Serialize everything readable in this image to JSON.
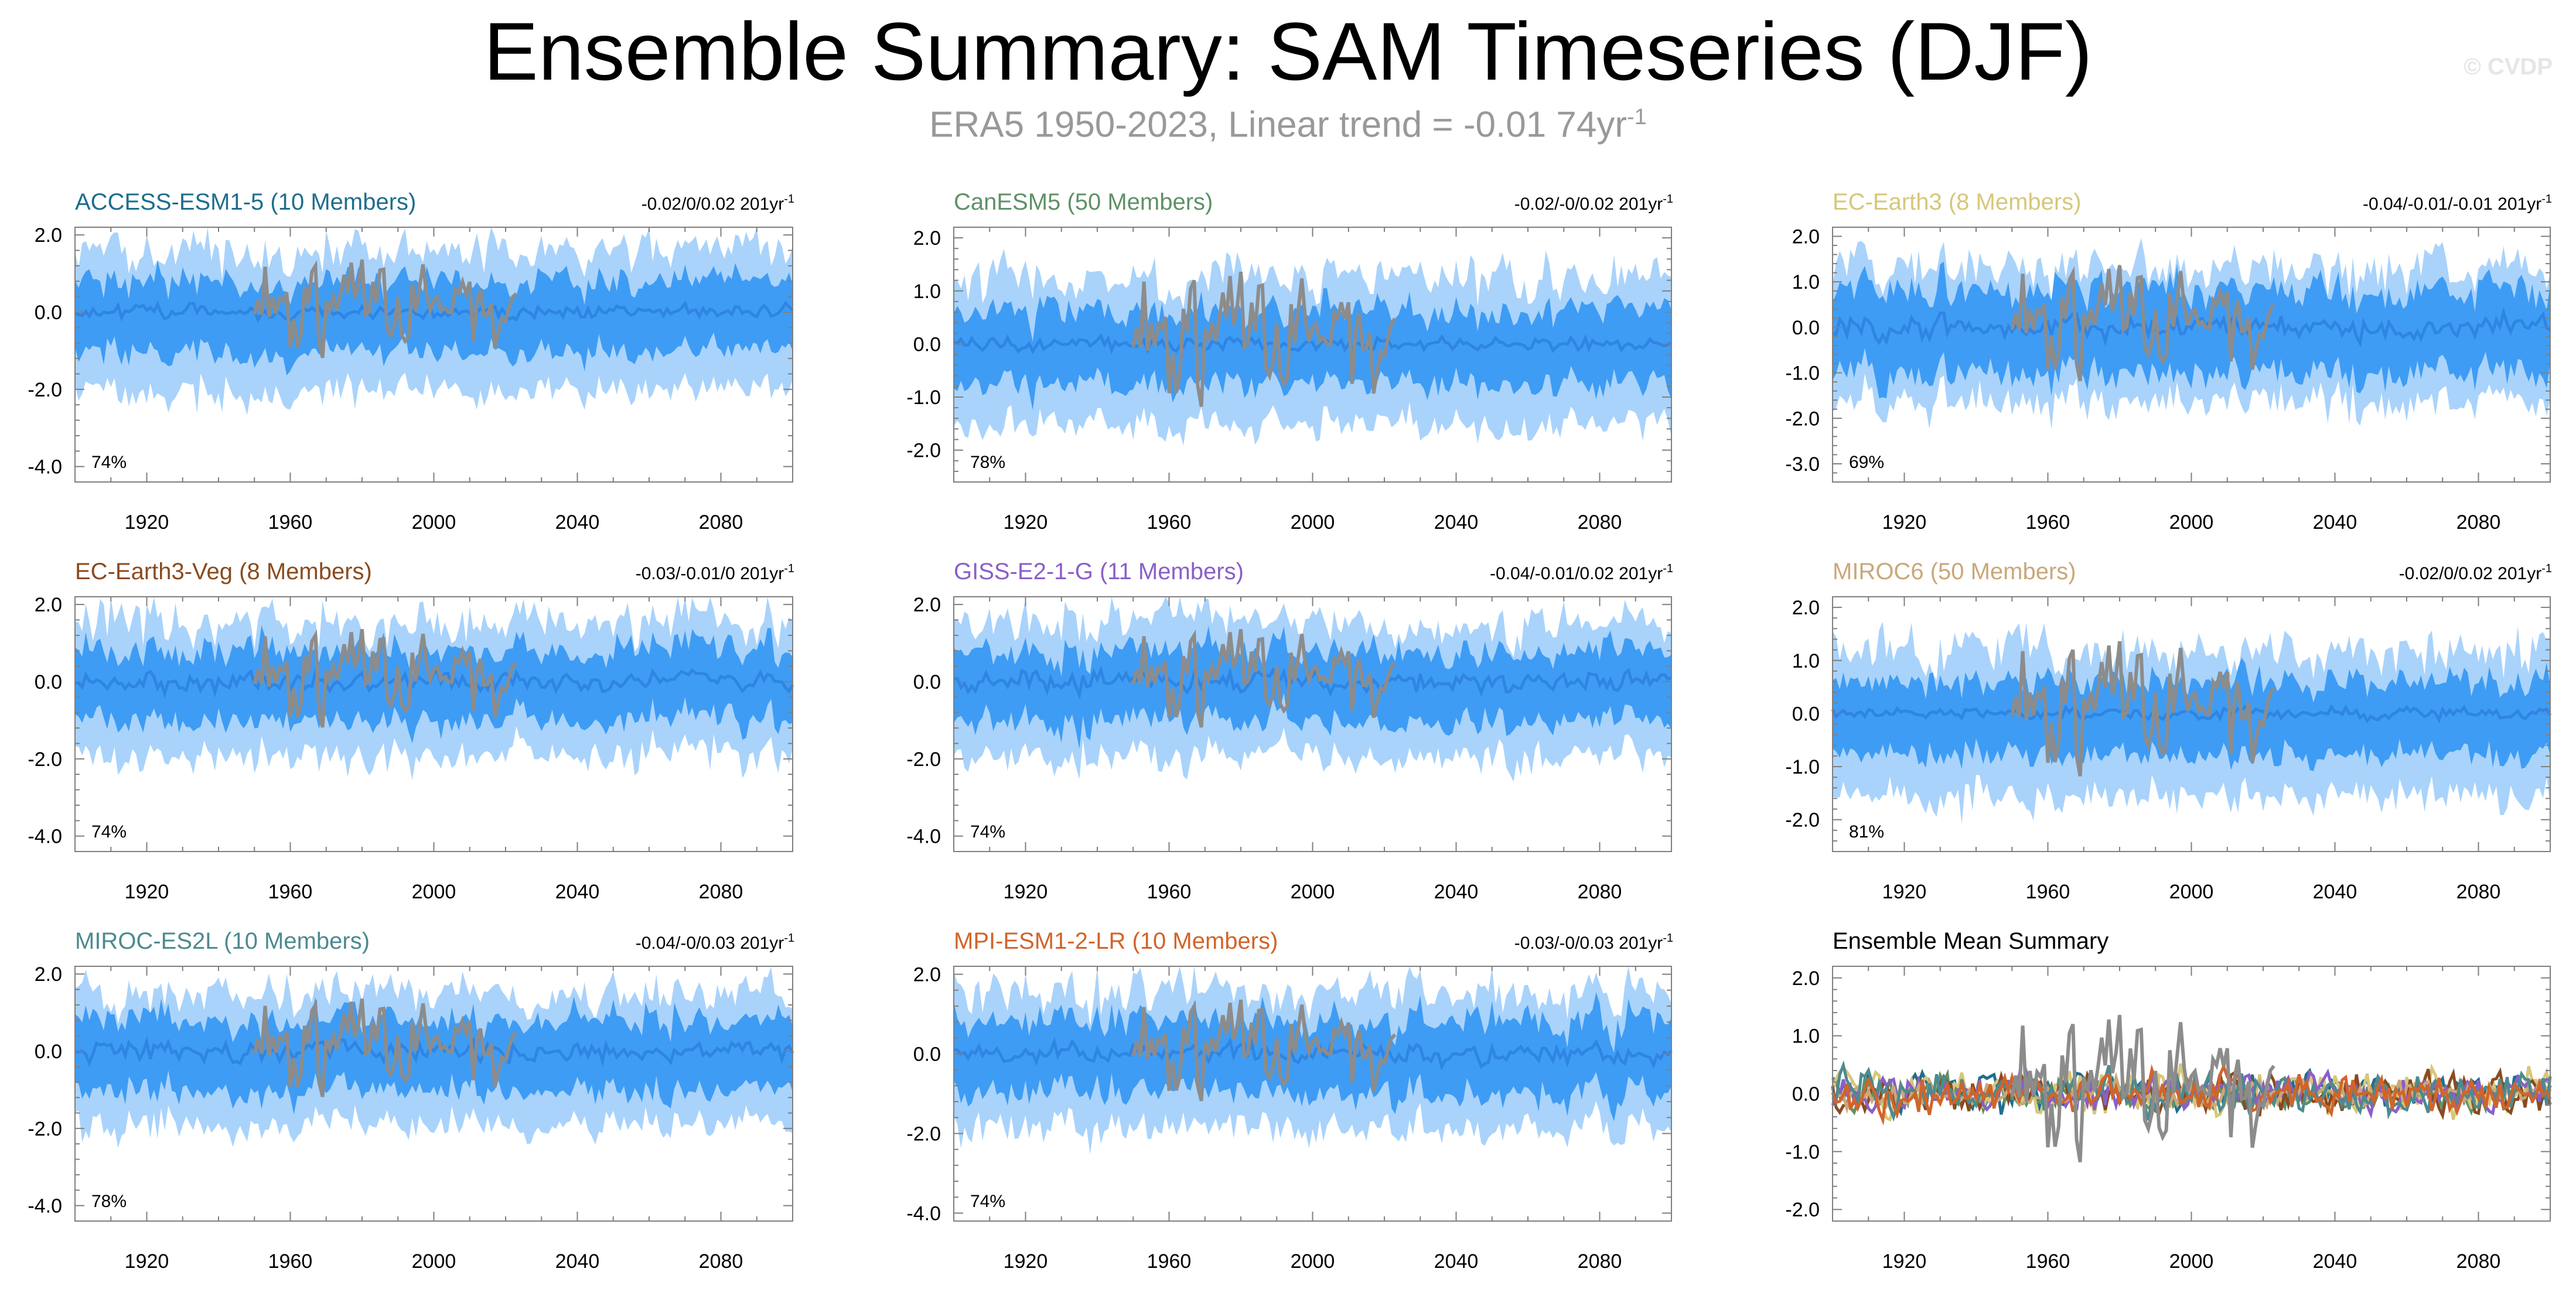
{
  "title": "Ensemble Summary: SAM Timeseries (DJF)",
  "subtitle_main": "ERA5 1950-2023, Linear trend = -0.01 74yr",
  "subtitle_sup": "-1",
  "watermark": "© CVDP",
  "colors": {
    "outer_band": "#a9d3fb",
    "inner_band": "#3e9cf4",
    "ens_mean": "#2f85e3",
    "obs": "#8c8c8c",
    "axis": "#7f7f7f"
  },
  "chart_data": [
    {
      "type": "area",
      "title": "ACCESS-ESM1-5 (10 Members)",
      "title_color": "#1f6e8c",
      "range_label": "-0.02/0/0.02 201yr",
      "range_sup": "-1",
      "percent": "74%",
      "ylim": [
        -4.4,
        2.2
      ],
      "yticks": [
        2.0,
        0.0,
        -2.0,
        -4.0
      ],
      "ytick_labels": [
        "2.0",
        "0.0",
        "-2.0",
        "-4.0"
      ],
      "xlim": [
        1900,
        2100
      ],
      "xticks": [
        1920,
        1960,
        2000,
        2040,
        2080
      ],
      "series": [
        {
          "role": "outer",
          "x_range": [
            1900,
            2100
          ],
          "amplitude": 1.6
        },
        {
          "role": "inner",
          "x_range": [
            1900,
            2100
          ],
          "amplitude": 0.8
        },
        {
          "role": "mean",
          "x_range": [
            1900,
            2100
          ],
          "amplitude": 0.2
        },
        {
          "role": "obs",
          "x_range": [
            1950,
            2023
          ],
          "amplitude": 0.9
        }
      ]
    },
    {
      "type": "area",
      "title": "CanESM5 (50 Members)",
      "title_color": "#5f9167",
      "range_label": "-0.02/-0/0.02 201yr",
      "range_sup": "-1",
      "percent": "78%",
      "ylim": [
        -2.6,
        2.2
      ],
      "yticks": [
        2.0,
        1.0,
        0.0,
        -1.0,
        -2.0
      ],
      "ytick_labels": [
        "2.0",
        "1.0",
        "0.0",
        "-1.0",
        "-2.0"
      ],
      "xlim": [
        1900,
        2100
      ],
      "xticks": [
        1920,
        1960,
        2000,
        2040,
        2080
      ],
      "series": [
        {
          "role": "outer",
          "x_range": [
            1900,
            2100
          ],
          "amplitude": 1.2
        },
        {
          "role": "inner",
          "x_range": [
            1900,
            2100
          ],
          "amplitude": 0.6
        },
        {
          "role": "mean",
          "x_range": [
            1900,
            2100
          ],
          "amplitude": 0.15
        },
        {
          "role": "obs",
          "x_range": [
            1950,
            2023
          ],
          "amplitude": 0.9
        }
      ]
    },
    {
      "type": "area",
      "title": "EC-Earth3 (8 Members)",
      "title_color": "#d6c77a",
      "range_label": "-0.04/-0.01/-0.01 201yr",
      "range_sup": "-1",
      "percent": "69%",
      "ylim": [
        -3.4,
        2.2
      ],
      "yticks": [
        2.0,
        1.0,
        0.0,
        -1.0,
        -2.0,
        -3.0
      ],
      "ytick_labels": [
        "2.0",
        "1.0",
        "0.0",
        "-1.0",
        "-2.0",
        "-3.0"
      ],
      "xlim": [
        1900,
        2100
      ],
      "xticks": [
        1920,
        1960,
        2000,
        2040,
        2080
      ],
      "series": [
        {
          "role": "outer",
          "x_range": [
            1900,
            2100
          ],
          "amplitude": 1.3
        },
        {
          "role": "inner",
          "x_range": [
            1900,
            2100
          ],
          "amplitude": 0.8
        },
        {
          "role": "mean",
          "x_range": [
            1900,
            2100
          ],
          "amplitude": 0.3
        },
        {
          "role": "obs",
          "x_range": [
            1950,
            2023
          ],
          "amplitude": 0.9
        }
      ]
    },
    {
      "type": "area",
      "title": "EC-Earth3-Veg (8 Members)",
      "title_color": "#8a4b1f",
      "range_label": "-0.03/-0.01/0 201yr",
      "range_sup": "-1",
      "percent": "74%",
      "ylim": [
        -4.4,
        2.2
      ],
      "yticks": [
        2.0,
        0.0,
        -2.0,
        -4.0
      ],
      "ytick_labels": [
        "2.0",
        "0.0",
        "-2.0",
        "-4.0"
      ],
      "xlim": [
        1900,
        2100
      ],
      "xticks": [
        1920,
        1960,
        2000,
        2040,
        2080
      ],
      "series": [
        {
          "role": "outer",
          "x_range": [
            1900,
            2100
          ],
          "amplitude": 1.5
        },
        {
          "role": "inner",
          "x_range": [
            1900,
            2100
          ],
          "amplitude": 0.8
        },
        {
          "role": "mean",
          "x_range": [
            1900,
            2100
          ],
          "amplitude": 0.3
        },
        {
          "role": "obs",
          "x_range": [
            1950,
            2023
          ],
          "amplitude": 0.9
        }
      ]
    },
    {
      "type": "area",
      "title": "GISS-E2-1-G (11 Members)",
      "title_color": "#8a5fc8",
      "range_label": "-0.04/-0.01/0.02 201yr",
      "range_sup": "-1",
      "percent": "74%",
      "ylim": [
        -4.4,
        2.2
      ],
      "yticks": [
        2.0,
        0.0,
        -2.0,
        -4.0
      ],
      "ytick_labels": [
        "2.0",
        "0.0",
        "-2.0",
        "-4.0"
      ],
      "xlim": [
        1900,
        2100
      ],
      "xticks": [
        1920,
        1960,
        2000,
        2040,
        2080
      ],
      "series": [
        {
          "role": "outer",
          "x_range": [
            1900,
            2100
          ],
          "amplitude": 1.5
        },
        {
          "role": "inner",
          "x_range": [
            1900,
            2100
          ],
          "amplitude": 0.8
        },
        {
          "role": "mean",
          "x_range": [
            1900,
            2100
          ],
          "amplitude": 0.3
        },
        {
          "role": "obs",
          "x_range": [
            1950,
            2023
          ],
          "amplitude": 0.9
        }
      ]
    },
    {
      "type": "area",
      "title": "MIROC6 (50 Members)",
      "title_color": "#c9a87a",
      "range_label": "-0.02/0/0.02 201yr",
      "range_sup": "-1",
      "percent": "81%",
      "ylim": [
        -2.6,
        2.2
      ],
      "yticks": [
        2.0,
        1.0,
        0.0,
        -1.0,
        -2.0
      ],
      "ytick_labels": [
        "2.0",
        "1.0",
        "0.0",
        "-1.0",
        "-2.0"
      ],
      "xlim": [
        1900,
        2100
      ],
      "xticks": [
        1920,
        1960,
        2000,
        2040,
        2080
      ],
      "series": [
        {
          "role": "outer",
          "x_range": [
            1900,
            2100
          ],
          "amplitude": 1.2
        },
        {
          "role": "inner",
          "x_range": [
            1900,
            2100
          ],
          "amplitude": 0.6
        },
        {
          "role": "mean",
          "x_range": [
            1900,
            2100
          ],
          "amplitude": 0.12
        },
        {
          "role": "obs",
          "x_range": [
            1950,
            2023
          ],
          "amplitude": 0.9
        }
      ]
    },
    {
      "type": "area",
      "title": "MIROC-ES2L (10 Members)",
      "title_color": "#4d8a8f",
      "range_label": "-0.04/-0/0.03 201yr",
      "range_sup": "-1",
      "percent": "78%",
      "ylim": [
        -4.4,
        2.2
      ],
      "yticks": [
        2.0,
        0.0,
        -2.0,
        -4.0
      ],
      "ytick_labels": [
        "2.0",
        "0.0",
        "-2.0",
        "-4.0"
      ],
      "xlim": [
        1900,
        2100
      ],
      "xticks": [
        1920,
        1960,
        2000,
        2040,
        2080
      ],
      "series": [
        {
          "role": "outer",
          "x_range": [
            1900,
            2100
          ],
          "amplitude": 1.5
        },
        {
          "role": "inner",
          "x_range": [
            1900,
            2100
          ],
          "amplitude": 0.8
        },
        {
          "role": "mean",
          "x_range": [
            1900,
            2100
          ],
          "amplitude": 0.3
        },
        {
          "role": "obs",
          "x_range": [
            1950,
            2023
          ],
          "amplitude": 0.9
        }
      ]
    },
    {
      "type": "area",
      "title": "MPI-ESM1-2-LR (10 Members)",
      "title_color": "#d2642a",
      "range_label": "-0.03/-0/0.03 201yr",
      "range_sup": "-1",
      "percent": "74%",
      "ylim": [
        -4.2,
        2.2
      ],
      "yticks": [
        2.0,
        0.0,
        -2.0,
        -4.0
      ],
      "ytick_labels": [
        "2.0",
        "0.0",
        "-2.0",
        "-4.0"
      ],
      "xlim": [
        1900,
        2100
      ],
      "xticks": [
        1920,
        1960,
        2000,
        2040,
        2080
      ],
      "series": [
        {
          "role": "outer",
          "x_range": [
            1900,
            2100
          ],
          "amplitude": 1.5
        },
        {
          "role": "inner",
          "x_range": [
            1900,
            2100
          ],
          "amplitude": 0.8
        },
        {
          "role": "mean",
          "x_range": [
            1900,
            2100
          ],
          "amplitude": 0.3
        },
        {
          "role": "obs",
          "x_range": [
            1950,
            2023
          ],
          "amplitude": 0.9
        }
      ]
    },
    {
      "type": "line",
      "title": "Ensemble Mean Summary",
      "title_color": "#000000",
      "range_label": "",
      "range_sup": "",
      "percent": "",
      "ylim": [
        -2.2,
        2.2
      ],
      "yticks": [
        2.0,
        1.0,
        0.0,
        -1.0,
        -2.0
      ],
      "ytick_labels": [
        "2.0",
        "1.0",
        "0.0",
        "-1.0",
        "-2.0"
      ],
      "xlim": [
        1900,
        2100
      ],
      "xticks": [
        1920,
        1960,
        2000,
        2040,
        2080
      ],
      "series": [
        {
          "role": "model",
          "color": "#1f6e8c",
          "x_range": [
            1900,
            2100
          ],
          "amplitude": 0.35
        },
        {
          "role": "model",
          "color": "#5f9167",
          "x_range": [
            1900,
            2100
          ],
          "amplitude": 0.3
        },
        {
          "role": "model",
          "color": "#d6c77a",
          "x_range": [
            1900,
            2100
          ],
          "amplitude": 0.45
        },
        {
          "role": "model",
          "color": "#8a4b1f",
          "x_range": [
            1900,
            2100
          ],
          "amplitude": 0.4
        },
        {
          "role": "model",
          "color": "#8a5fc8",
          "x_range": [
            1900,
            2100
          ],
          "amplitude": 0.35
        },
        {
          "role": "model",
          "color": "#c9a87a",
          "x_range": [
            1900,
            2100
          ],
          "amplitude": 0.25
        },
        {
          "role": "model",
          "color": "#4d8a8f",
          "x_range": [
            1900,
            2100
          ],
          "amplitude": 0.4
        },
        {
          "role": "model",
          "color": "#d2642a",
          "x_range": [
            1900,
            2100
          ],
          "amplitude": 0.4
        },
        {
          "role": "obs",
          "color": "#8c8c8c",
          "x_range": [
            1950,
            2023
          ],
          "amplitude": 0.9
        }
      ]
    }
  ]
}
